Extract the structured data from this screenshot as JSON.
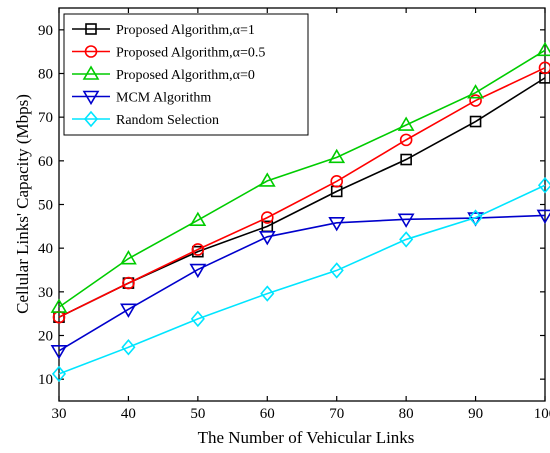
{
  "chart_data": {
    "type": "line",
    "xlabel": "The Number of Vehicular Links",
    "ylabel": "Cellular Links' Capacity (Mbps)",
    "xlim": [
      30,
      100
    ],
    "ylim": [
      5,
      95
    ],
    "xticks": [
      30,
      40,
      50,
      60,
      70,
      80,
      90,
      100
    ],
    "yticks": [
      10,
      20,
      30,
      40,
      50,
      60,
      70,
      80,
      90
    ],
    "grid": false,
    "legend_position": "top-left",
    "x": [
      30,
      40,
      50,
      60,
      70,
      80,
      90,
      100
    ],
    "series": [
      {
        "name": "Proposed Algorithm,α=1",
        "values": [
          24.2,
          32.0,
          39.2,
          45.0,
          53.0,
          60.3,
          69.0,
          79.0
        ],
        "color": "#000000",
        "marker": "square"
      },
      {
        "name": "Proposed Algorithm,α=0.5",
        "values": [
          24.2,
          32.0,
          39.7,
          47.0,
          55.3,
          64.8,
          73.8,
          81.3
        ],
        "color": "#ff0000",
        "marker": "circle"
      },
      {
        "name": "Proposed Algorithm,α=0",
        "values": [
          26.5,
          37.6,
          46.4,
          55.4,
          60.8,
          68.2,
          75.6,
          85.3
        ],
        "color": "#00cc00",
        "marker": "triangle-up"
      },
      {
        "name": "MCM Algorithm",
        "values": [
          16.5,
          26.0,
          35.1,
          42.6,
          45.8,
          46.6,
          46.9,
          47.5
        ],
        "color": "#0000cc",
        "marker": "triangle-down"
      },
      {
        "name": "Random Selection",
        "values": [
          11.2,
          17.3,
          23.8,
          29.6,
          34.9,
          42.0,
          47.0,
          54.4
        ],
        "color": "#00e5ff",
        "marker": "diamond"
      }
    ]
  }
}
